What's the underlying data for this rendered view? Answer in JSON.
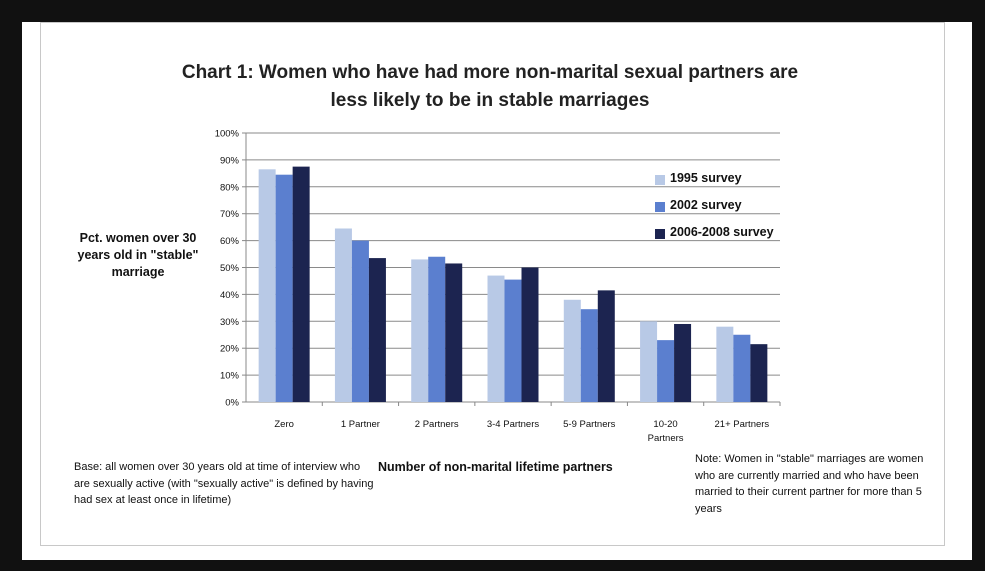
{
  "chart_data": {
    "type": "bar",
    "title_line1": "Chart 1: Women who have had more non-marital sexual partners are",
    "title_line2": "less likely to be in stable marriages",
    "ylabel": "Pct. women over 30 years  old in \"stable\" marriage",
    "xlabel": "Number of non-marital lifetime partners",
    "ylim": [
      0,
      100
    ],
    "yticks": [
      "0%",
      "10%",
      "20%",
      "30%",
      "40%",
      "50%",
      "60%",
      "70%",
      "80%",
      "90%",
      "100%"
    ],
    "grid": true,
    "legend_position": "right",
    "categories": [
      "Zero",
      "1 Partner",
      "2 Partners",
      "3-4 Partners",
      "5-9 Partners",
      "10-20 Partners",
      "21+ Partners"
    ],
    "series": [
      {
        "name": "1995 survey",
        "color": "#b8c9e6",
        "values": [
          86.5,
          64.5,
          53,
          47,
          38,
          30,
          28
        ]
      },
      {
        "name": "2002 survey",
        "color": "#5b7fcf",
        "values": [
          84.5,
          60,
          54,
          45.5,
          34.5,
          23,
          25
        ]
      },
      {
        "name": "2006-2008 survey",
        "color": "#1c2450",
        "values": [
          87.5,
          53.5,
          51.5,
          50,
          41.5,
          29,
          21.5
        ]
      }
    ]
  },
  "notes": {
    "base": "Base: all women over 30 years old at time of interview who are sexually active (with \"sexually active\" is defined by having had sex at least once in lifetime)",
    "right": "Note: Women in \"stable\" marriages are women who are currently married and who have been married to their current partner for more than 5 years"
  }
}
